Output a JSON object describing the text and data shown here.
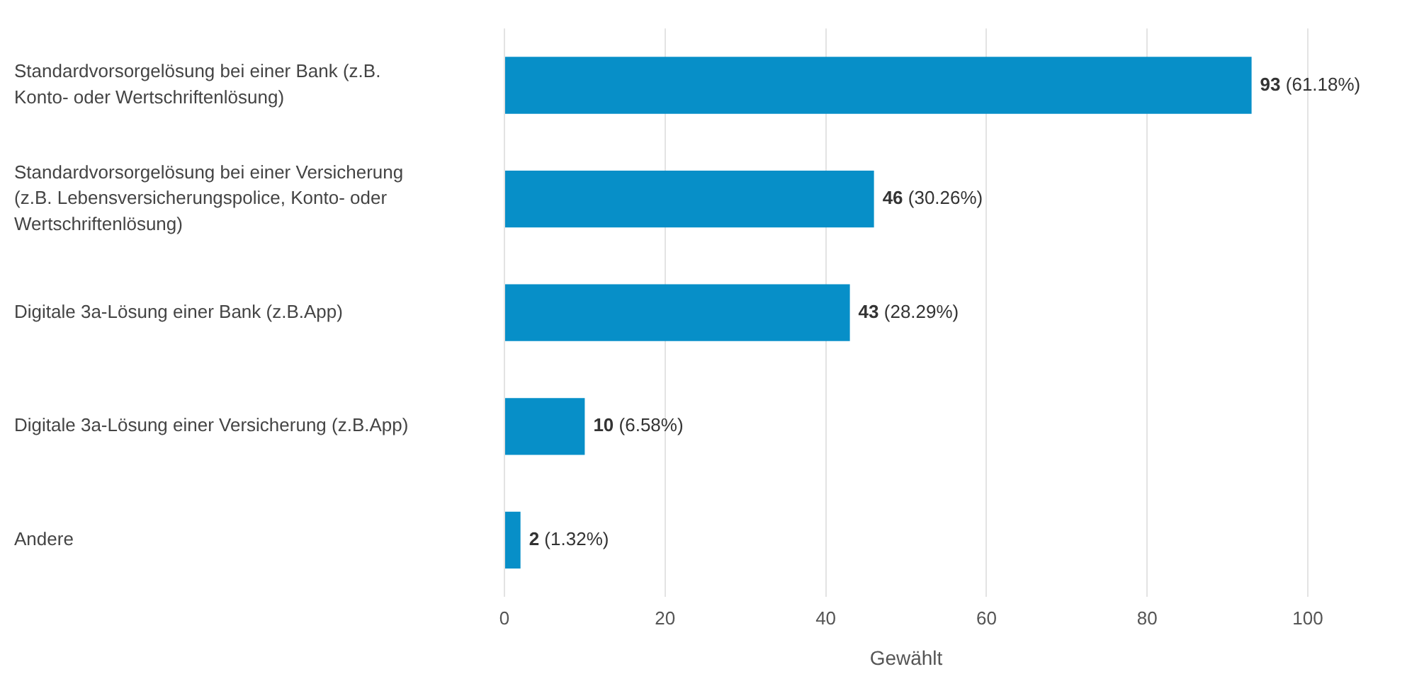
{
  "chart_data": {
    "type": "bar",
    "orientation": "horizontal",
    "categories": [
      "Standardvorsorgelösung bei einer Bank (z.B. Konto- oder Wertschriftenlösung)",
      "Standardvorsorgelösung bei einer Versicherung (z.B. Lebensversicherungspolice, Konto- oder Wertschriftenlösung)",
      "Digitale 3a-Lösung einer Bank (z.B.App)",
      "Digitale 3a-Lösung einer Versicherung (z.B.App)",
      "Andere"
    ],
    "values": [
      93,
      46,
      43,
      10,
      2
    ],
    "value_labels": [
      "93 (61.18%)",
      "46 (30.26%)",
      "43 (28.29%)",
      "10 (6.58%)",
      "2 (1.32%)"
    ],
    "color": "#078fc8",
    "xlabel": "Gewählt",
    "xlim": [
      0,
      100
    ],
    "xticks": [
      0,
      20,
      40,
      60,
      80,
      100
    ],
    "grid": "x",
    "legend": false
  }
}
